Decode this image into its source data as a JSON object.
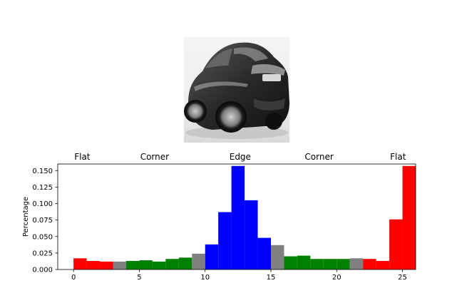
{
  "image": {
    "subject": "black sports car, rear three-quarter view"
  },
  "colors": {
    "flat": "#ff0000",
    "corner": "#008000",
    "edge": "#0000ff",
    "boundary": "#808080"
  },
  "chart_data": {
    "type": "bar",
    "title": "",
    "xlabel": "",
    "ylabel": "Percentage",
    "xlim": [
      -1.2,
      26
    ],
    "ylim": [
      0,
      0.16
    ],
    "xticks": [
      0,
      5,
      10,
      15,
      20,
      25
    ],
    "yticks": [
      0.0,
      0.025,
      0.05,
      0.075,
      0.1,
      0.125,
      0.15
    ],
    "ytick_labels": [
      "0.000",
      "0.025",
      "0.050",
      "0.075",
      "0.100",
      "0.125",
      "0.150"
    ],
    "region_labels": [
      "Flat",
      "Corner",
      "Edge",
      "Corner",
      "Flat"
    ],
    "bins": [
      0,
      1,
      2,
      3,
      4,
      5,
      6,
      7,
      8,
      9,
      10,
      11,
      12,
      13,
      14,
      15,
      16,
      17,
      18,
      19,
      20,
      21,
      22,
      23,
      24,
      25
    ],
    "values": [
      0.017,
      0.013,
      0.012,
      0.012,
      0.013,
      0.014,
      0.012,
      0.016,
      0.018,
      0.024,
      0.038,
      0.087,
      0.157,
      0.105,
      0.048,
      0.037,
      0.02,
      0.021,
      0.016,
      0.016,
      0.016,
      0.017,
      0.016,
      0.013,
      0.076,
      0.157
    ],
    "bar_colors": [
      "flat",
      "flat",
      "flat",
      "boundary",
      "corner",
      "corner",
      "corner",
      "corner",
      "corner",
      "boundary",
      "edge",
      "edge",
      "edge",
      "edge",
      "edge",
      "boundary",
      "corner",
      "corner",
      "corner",
      "corner",
      "corner",
      "boundary",
      "flat",
      "flat",
      "flat",
      "flat"
    ]
  }
}
